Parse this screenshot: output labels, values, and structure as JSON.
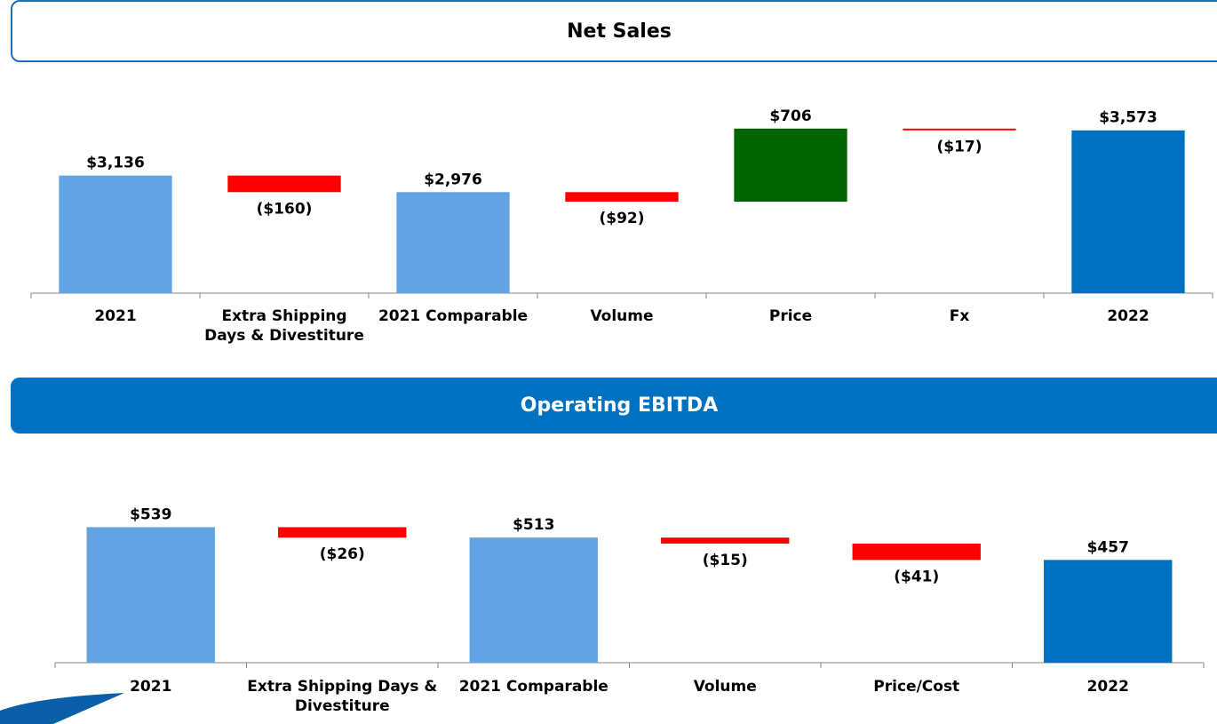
{
  "chart_data": [
    {
      "type": "waterfall",
      "title": "Net Sales",
      "categories": [
        "2021",
        "Extra Shipping Days & Divestiture",
        "2021 Comparable",
        "Volume",
        "Price",
        "Fx",
        "2022"
      ],
      "values": [
        3136,
        -160,
        2976,
        -92,
        706,
        -17,
        3573
      ],
      "value_labels": [
        "$3,136",
        "($160)",
        "$2,976",
        "($92)",
        "$706",
        "($17)",
        "$3,573"
      ],
      "measure": [
        "absolute",
        "relative",
        "absolute",
        "relative",
        "relative",
        "relative",
        "absolute"
      ],
      "colors": [
        "#62a3e4",
        "#ff0000",
        "#62a3e4",
        "#ff0000",
        "#006400",
        "#ff0000",
        "#0070c0"
      ],
      "ylim": [
        2000,
        4000
      ]
    },
    {
      "type": "waterfall",
      "title": "Operating EBITDA",
      "categories": [
        "2021",
        "Extra Shipping Days & Divestiture",
        "2021 Comparable",
        "Volume",
        "Price/Cost",
        "2022"
      ],
      "values": [
        539,
        -26,
        513,
        -15,
        -41,
        457
      ],
      "value_labels": [
        "$539",
        "($26)",
        "$513",
        "($15)",
        "($41)",
        "$457"
      ],
      "measure": [
        "absolute",
        "relative",
        "absolute",
        "relative",
        "relative",
        "absolute"
      ],
      "colors": [
        "#62a3e4",
        "#ff0000",
        "#62a3e4",
        "#ff0000",
        "#ff0000",
        "#0070c0"
      ],
      "ylim": [
        200,
        600
      ]
    }
  ]
}
